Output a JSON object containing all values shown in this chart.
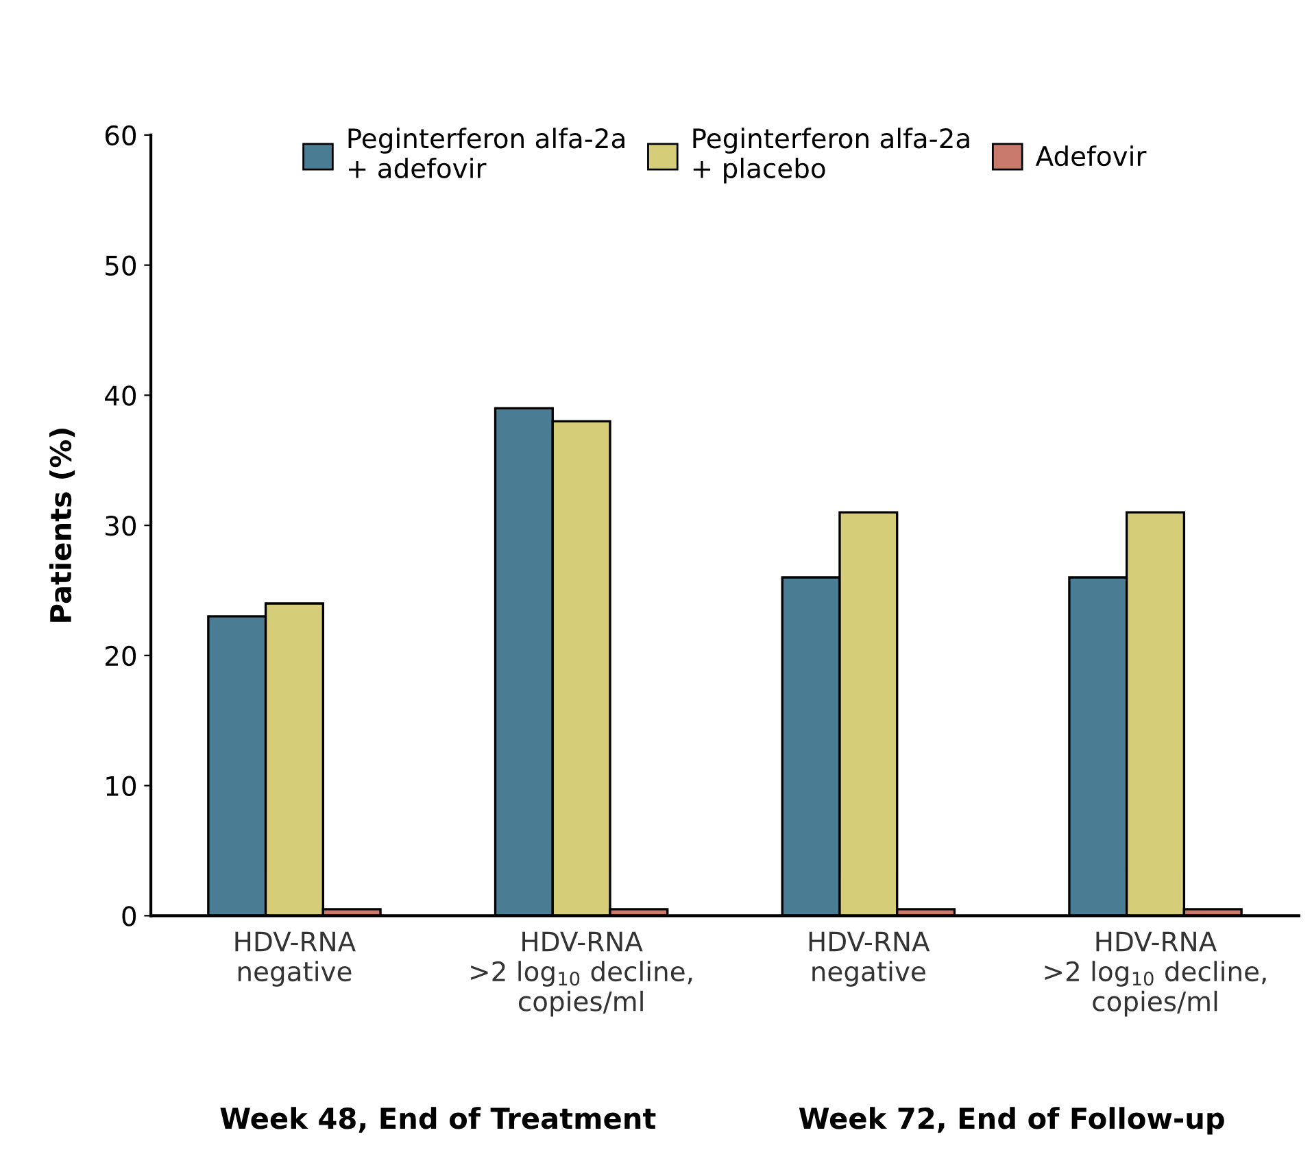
{
  "chart_data": {
    "type": "bar",
    "ylabel": "Patients (%)",
    "categories": [
      "HDV-RNA\nnegative",
      "HDV-RNA\n>2 log$_{10}$ decline,\ncopies/ml",
      "HDV-RNA\nnegative",
      "HDV-RNA\n>2 log$_{10}$ decline,\ncopies/ml"
    ],
    "series": [
      {
        "name": "Peginterferon alfa-2a\n+ adefovir",
        "color": "#4a7d94",
        "values": [
          23,
          39,
          26,
          26
        ]
      },
      {
        "name": "Peginterferon alfa-2a\n+ placebo",
        "color": "#d6cd78",
        "values": [
          24,
          38,
          31,
          31
        ]
      },
      {
        "name": "Adefovir",
        "color": "#c97a6c",
        "values": [
          0.5,
          0.5,
          0.5,
          0.5
        ]
      }
    ],
    "ylim": [
      0,
      60
    ],
    "yticks": [
      0,
      10,
      20,
      30,
      40,
      50,
      60
    ],
    "grid": false,
    "legend": "top",
    "annotations": [
      "Week 48, End of Treatment",
      "Week 72, End of Follow-up"
    ]
  }
}
